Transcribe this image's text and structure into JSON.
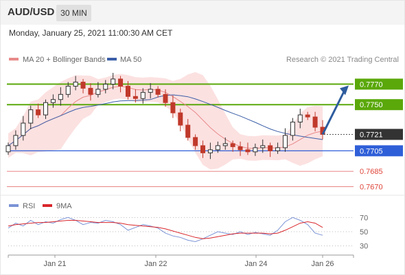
{
  "header": {
    "symbol": "AUD/USD",
    "timeframe": "30 MIN",
    "datetime": "Monday, January 25, 2021 11:00:30 AM CET"
  },
  "colors": {
    "candle_up": "#2f2f2f",
    "candle_down": "#c0392b",
    "bollinger_fill": "#fbdcdc",
    "ma20": "#e88a8a",
    "ma50": "#3b5ea8",
    "resistance": "#5aa80a",
    "support": "#2f5fd8",
    "support_minor": "#e57373",
    "current_price": "#333333",
    "arrow": "#2e5c9e",
    "rsi": "#7b93d6",
    "rsi_ma": "#d9262b"
  },
  "chart_data": [
    {
      "type": "candlestick",
      "legend": [
        "MA 20 + Bollinger Bands",
        "MA 50"
      ],
      "attribution": "Research © 2021 Trading Central",
      "ylim": [
        0.7663,
        0.7785
      ],
      "x_ticks": [
        "Jan 21",
        "Jan 22",
        "Jan 24",
        "Jan 26"
      ],
      "current_price": "0.7721",
      "levels": [
        {
          "value": 0.777,
          "label": "0.7770",
          "kind": "resistance"
        },
        {
          "value": 0.775,
          "label": "0.7750",
          "kind": "resistance"
        },
        {
          "value": 0.7705,
          "label": "0.7705",
          "kind": "support"
        },
        {
          "value": 0.7685,
          "label": "0.7685",
          "kind": "support_minor"
        },
        {
          "value": 0.767,
          "label": "0.7670",
          "kind": "support_minor"
        }
      ],
      "close": [
        0.771,
        0.772,
        0.7732,
        0.7745,
        0.774,
        0.7752,
        0.7755,
        0.776,
        0.7768,
        0.7772,
        0.7766,
        0.776,
        0.7765,
        0.777,
        0.7775,
        0.7768,
        0.7758,
        0.7756,
        0.7762,
        0.7765,
        0.776,
        0.7752,
        0.7742,
        0.773,
        0.7718,
        0.771,
        0.7703,
        0.7706,
        0.771,
        0.7712,
        0.7709,
        0.7706,
        0.7704,
        0.7708,
        0.771,
        0.7705,
        0.7708,
        0.772,
        0.7733,
        0.774,
        0.7738,
        0.7728,
        0.7721
      ],
      "projection": {
        "from": 0.7721,
        "to": 0.777
      }
    },
    {
      "type": "line",
      "legend": [
        "RSI",
        "9MA"
      ],
      "ylim": [
        20,
        80
      ],
      "y_ticks": [
        "70",
        "50",
        "30"
      ],
      "rsi": [
        55,
        62,
        58,
        66,
        60,
        64,
        62,
        67,
        70,
        66,
        60,
        63,
        62,
        66,
        64,
        60,
        52,
        56,
        60,
        58,
        55,
        48,
        44,
        42,
        38,
        36,
        40,
        45,
        50,
        48,
        46,
        50,
        46,
        49,
        47,
        45,
        52,
        64,
        70,
        66,
        60,
        48,
        45
      ],
      "rsi_ma": [
        58,
        60,
        61,
        62,
        63,
        63,
        64,
        65,
        66,
        66,
        65,
        64,
        63,
        63,
        63,
        62,
        60,
        59,
        58,
        57,
        56,
        54,
        51,
        48,
        45,
        42,
        40,
        41,
        43,
        45,
        47,
        48,
        48,
        48,
        48,
        47,
        48,
        52,
        57,
        62,
        64,
        62,
        56
      ]
    }
  ]
}
